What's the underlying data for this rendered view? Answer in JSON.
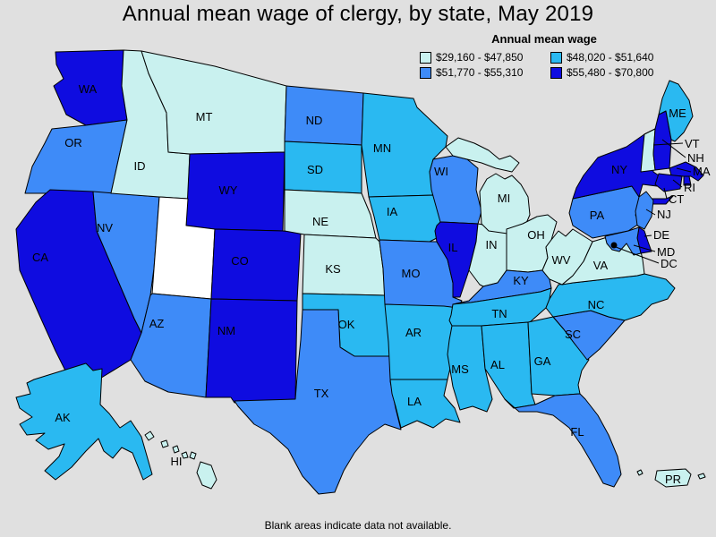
{
  "title": "Annual mean wage of clergy, by state, May 2019",
  "footnote": "Blank areas indicate data not available.",
  "legend": {
    "title": "Annual mean wage",
    "items": [
      {
        "label": "$29,160 - $47,850",
        "color": "#c9f1ef"
      },
      {
        "label": "$48,020 - $51,640",
        "color": "#2ab9f1"
      },
      {
        "label": "$51,770 - $55,310",
        "color": "#3e8bf8"
      },
      {
        "label": "$55,480 - $70,800",
        "color": "#0f0ce0"
      }
    ],
    "no_data_color": "#ffffff"
  },
  "chart_data": {
    "type": "choropleth",
    "region": "United States",
    "title": "Annual mean wage of clergy, by state, May 2019",
    "legend_title": "Annual mean wage",
    "legend_position": "top-right",
    "bins": [
      "$29,160 - $47,850",
      "$48,020 - $51,640",
      "$51,770 - $55,310",
      "$55,480 - $70,800"
    ],
    "states": [
      {
        "abbr": "WA",
        "bin": 3
      },
      {
        "abbr": "OR",
        "bin": 2
      },
      {
        "abbr": "CA",
        "bin": 3
      },
      {
        "abbr": "NV",
        "bin": 2
      },
      {
        "abbr": "ID",
        "bin": 0
      },
      {
        "abbr": "MT",
        "bin": 0
      },
      {
        "abbr": "WY",
        "bin": 3
      },
      {
        "abbr": "UT",
        "bin": null
      },
      {
        "abbr": "CO",
        "bin": 3
      },
      {
        "abbr": "AZ",
        "bin": 2
      },
      {
        "abbr": "NM",
        "bin": 3
      },
      {
        "abbr": "ND",
        "bin": 2
      },
      {
        "abbr": "SD",
        "bin": 1
      },
      {
        "abbr": "NE",
        "bin": 0
      },
      {
        "abbr": "KS",
        "bin": 0
      },
      {
        "abbr": "OK",
        "bin": 1
      },
      {
        "abbr": "TX",
        "bin": 2
      },
      {
        "abbr": "MN",
        "bin": 1
      },
      {
        "abbr": "IA",
        "bin": 1
      },
      {
        "abbr": "MO",
        "bin": 2
      },
      {
        "abbr": "AR",
        "bin": 1
      },
      {
        "abbr": "LA",
        "bin": 1
      },
      {
        "abbr": "WI",
        "bin": 2
      },
      {
        "abbr": "IL",
        "bin": 3
      },
      {
        "abbr": "IN",
        "bin": 0
      },
      {
        "abbr": "MI",
        "bin": 0
      },
      {
        "abbr": "OH",
        "bin": 0
      },
      {
        "abbr": "KY",
        "bin": 2
      },
      {
        "abbr": "TN",
        "bin": 1
      },
      {
        "abbr": "MS",
        "bin": 1
      },
      {
        "abbr": "AL",
        "bin": 1
      },
      {
        "abbr": "GA",
        "bin": 1
      },
      {
        "abbr": "FL",
        "bin": 2
      },
      {
        "abbr": "SC",
        "bin": 2
      },
      {
        "abbr": "NC",
        "bin": 1
      },
      {
        "abbr": "VA",
        "bin": 0
      },
      {
        "abbr": "WV",
        "bin": 0
      },
      {
        "abbr": "PA",
        "bin": 2
      },
      {
        "abbr": "NY",
        "bin": 3
      },
      {
        "abbr": "NJ",
        "bin": 2
      },
      {
        "abbr": "DE",
        "bin": 3
      },
      {
        "abbr": "MD",
        "bin": 2
      },
      {
        "abbr": "VT",
        "bin": 0
      },
      {
        "abbr": "NH",
        "bin": 3
      },
      {
        "abbr": "MA",
        "bin": 3
      },
      {
        "abbr": "RI",
        "bin": 3
      },
      {
        "abbr": "CT",
        "bin": 3
      },
      {
        "abbr": "ME",
        "bin": 1
      },
      {
        "abbr": "AK",
        "bin": 1
      },
      {
        "abbr": "HI",
        "bin": 0
      },
      {
        "abbr": "PR",
        "bin": 0
      },
      {
        "abbr": "DC",
        "bin": null,
        "marker": "dot"
      }
    ],
    "no_data_states": [
      "UT"
    ]
  }
}
